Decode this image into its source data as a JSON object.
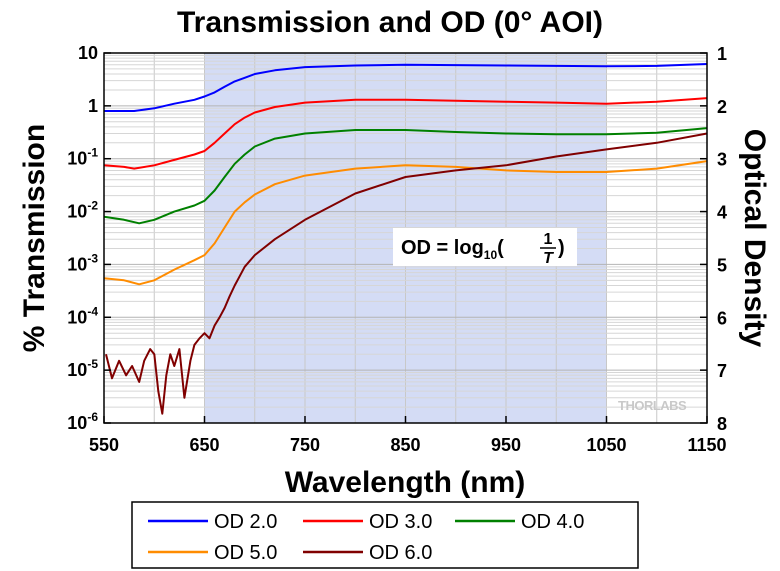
{
  "chart_data": {
    "type": "line",
    "title": "Transmission and OD (0° AOI)",
    "xlabel": "Wavelength (nm)",
    "ylabel": "% Transmission",
    "ylabel_right": "Optical Density",
    "xlim": [
      550,
      1150
    ],
    "ylim": [
      1e-06,
      10
    ],
    "y_scale": "log",
    "y_right_lim": [
      1,
      8
    ],
    "x_ticks": [
      550,
      650,
      750,
      850,
      950,
      1050,
      1150
    ],
    "y_ticks": [
      {
        "value": 10,
        "base": "10",
        "exp": ""
      },
      {
        "value": 1,
        "base": "1",
        "exp": ""
      },
      {
        "value": 0.1,
        "base": "10",
        "exp": "-1"
      },
      {
        "value": 0.01,
        "base": "10",
        "exp": "-2"
      },
      {
        "value": 0.001,
        "base": "10",
        "exp": "-3"
      },
      {
        "value": 0.0001,
        "base": "10",
        "exp": "-4"
      },
      {
        "value": 1e-05,
        "base": "10",
        "exp": "-5"
      },
      {
        "value": 1e-06,
        "base": "10",
        "exp": "-6"
      }
    ],
    "y_right_ticks": [
      "1",
      "2",
      "3",
      "4",
      "5",
      "6",
      "7",
      "8"
    ],
    "grid": true,
    "shaded_region": [
      650,
      1050
    ],
    "legend_position": "bottom",
    "annotation": {
      "prefix": "OD = log",
      "sub": "10",
      "num": "1",
      "den": "T"
    },
    "watermark": "THORLABS",
    "series": [
      {
        "name": "OD 2.0",
        "color": "#0000ff",
        "x": [
          550,
          580,
          600,
          620,
          640,
          650,
          660,
          670,
          680,
          690,
          700,
          720,
          750,
          800,
          850,
          900,
          950,
          1000,
          1050,
          1100,
          1150
        ],
        "y": [
          0.8,
          0.8,
          0.9,
          1.1,
          1.3,
          1.5,
          1.8,
          2.3,
          2.9,
          3.4,
          4.0,
          4.7,
          5.4,
          5.8,
          6.0,
          5.9,
          5.8,
          5.7,
          5.6,
          5.7,
          6.2
        ]
      },
      {
        "name": "OD 3.0",
        "color": "#ff0000",
        "x": [
          550,
          570,
          580,
          600,
          620,
          640,
          650,
          660,
          670,
          680,
          690,
          700,
          720,
          750,
          800,
          850,
          900,
          950,
          1000,
          1050,
          1100,
          1150
        ],
        "y": [
          0.075,
          0.07,
          0.065,
          0.075,
          0.095,
          0.12,
          0.14,
          0.2,
          0.3,
          0.45,
          0.6,
          0.75,
          0.95,
          1.15,
          1.3,
          1.3,
          1.25,
          1.2,
          1.15,
          1.1,
          1.2,
          1.4
        ]
      },
      {
        "name": "OD 4.0",
        "color": "#008000",
        "x": [
          550,
          570,
          585,
          600,
          620,
          640,
          650,
          660,
          670,
          680,
          690,
          700,
          720,
          750,
          800,
          850,
          900,
          950,
          1000,
          1050,
          1100,
          1150
        ],
        "y": [
          0.008,
          0.007,
          0.006,
          0.007,
          0.01,
          0.013,
          0.016,
          0.025,
          0.045,
          0.08,
          0.12,
          0.17,
          0.24,
          0.3,
          0.35,
          0.35,
          0.32,
          0.3,
          0.29,
          0.29,
          0.31,
          0.38
        ]
      },
      {
        "name": "OD 5.0",
        "color": "#ff8c00",
        "x": [
          550,
          570,
          585,
          600,
          620,
          640,
          650,
          660,
          670,
          680,
          690,
          700,
          720,
          750,
          800,
          850,
          900,
          950,
          1000,
          1050,
          1100,
          1150
        ],
        "y": [
          0.00055,
          0.0005,
          0.00042,
          0.0005,
          0.0008,
          0.0012,
          0.0015,
          0.0025,
          0.005,
          0.01,
          0.015,
          0.021,
          0.033,
          0.048,
          0.065,
          0.075,
          0.07,
          0.06,
          0.056,
          0.056,
          0.065,
          0.09
        ]
      },
      {
        "name": "OD 6.0",
        "color": "#800000",
        "x": [
          552,
          558,
          565,
          572,
          578,
          585,
          590,
          596,
          600,
          604,
          608,
          612,
          616,
          620,
          625,
          630,
          636,
          640,
          645,
          650,
          655,
          660,
          665,
          670,
          675,
          680,
          685,
          690,
          700,
          720,
          750,
          800,
          850,
          900,
          950,
          1000,
          1050,
          1100,
          1150
        ],
        "y": [
          2e-05,
          7e-06,
          1.5e-05,
          8e-06,
          1.2e-05,
          6e-06,
          1.5e-05,
          2.5e-05,
          2e-05,
          4e-06,
          1.5e-06,
          8e-06,
          2e-05,
          1.2e-05,
          2.5e-05,
          3e-06,
          1.5e-05,
          3e-05,
          4e-05,
          5e-05,
          4e-05,
          7e-05,
          0.0001,
          0.00015,
          0.00025,
          0.0004,
          0.0006,
          0.0009,
          0.0015,
          0.003,
          0.007,
          0.022,
          0.045,
          0.06,
          0.075,
          0.11,
          0.15,
          0.2,
          0.3
        ]
      }
    ]
  }
}
